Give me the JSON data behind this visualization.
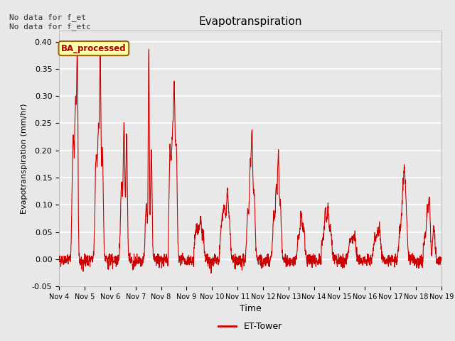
{
  "title": "Evapotranspiration",
  "xlabel": "Time",
  "ylabel": "Evapotranspiration (mm/hr)",
  "ylim": [
    -0.05,
    0.42
  ],
  "yticks": [
    -0.05,
    0.0,
    0.05,
    0.1,
    0.15,
    0.2,
    0.25,
    0.3,
    0.35,
    0.4
  ],
  "line_color": "#cc0000",
  "line_width": 0.8,
  "bg_color": "#e8e8e8",
  "plot_bg_color": "#e8e8e8",
  "grid_color": "#ffffff",
  "annotation_text": "No data for f_et\nNo data for f_etc",
  "box_label": "BA_processed",
  "legend_label": "ET-Tower",
  "x_tick_labels": [
    "Nov 4",
    "Nov 5",
    "Nov 6",
    "Nov 7",
    "Nov 8",
    "Nov 9",
    "Nov 10",
    "Nov 11",
    "Nov 12",
    "Nov 13",
    "Nov 14",
    "Nov 15",
    "Nov 16",
    "Nov 17",
    "Nov 18",
    "Nov 19"
  ],
  "figsize": [
    6.4,
    4.8
  ],
  "dpi": 100
}
